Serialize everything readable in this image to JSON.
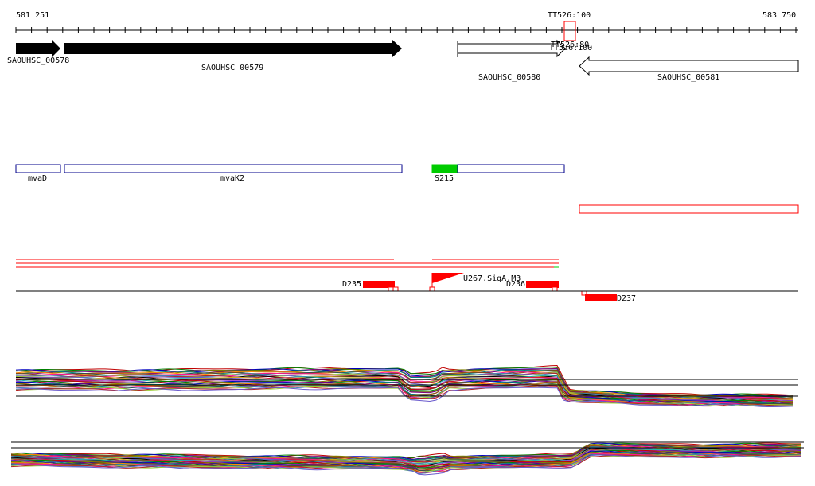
{
  "ruler": {
    "start_label": "581 251",
    "end_label": "583 750",
    "marker_label": "TT526:100",
    "marker_overlap_a": "TT526:80",
    "marker_overlap_b": "TT526:100"
  },
  "genes": [
    {
      "name": "SAOUHSC_00578",
      "strand": "+",
      "style": "filled"
    },
    {
      "name": "SAOUHSC_00579",
      "strand": "+",
      "style": "filled"
    },
    {
      "name": "SAOUHSC_00580",
      "strand": "+",
      "style": "outline"
    },
    {
      "name": "SAOUHSC_00581",
      "strand": "-",
      "style": "outline"
    }
  ],
  "operon_features": [
    {
      "name": "mvaD"
    },
    {
      "name": "mvaK2"
    },
    {
      "name": "S215"
    }
  ],
  "annotations": {
    "sig_label": "U267.SigA.M3",
    "promoters": [
      "D235",
      "D236",
      "D237"
    ]
  },
  "colors": {
    "gene_fill": "#000000",
    "feature_outline": "#00008b",
    "feature_highlight": "#00cc00",
    "red_feature": "#ff0000",
    "axis": "#000000"
  }
}
